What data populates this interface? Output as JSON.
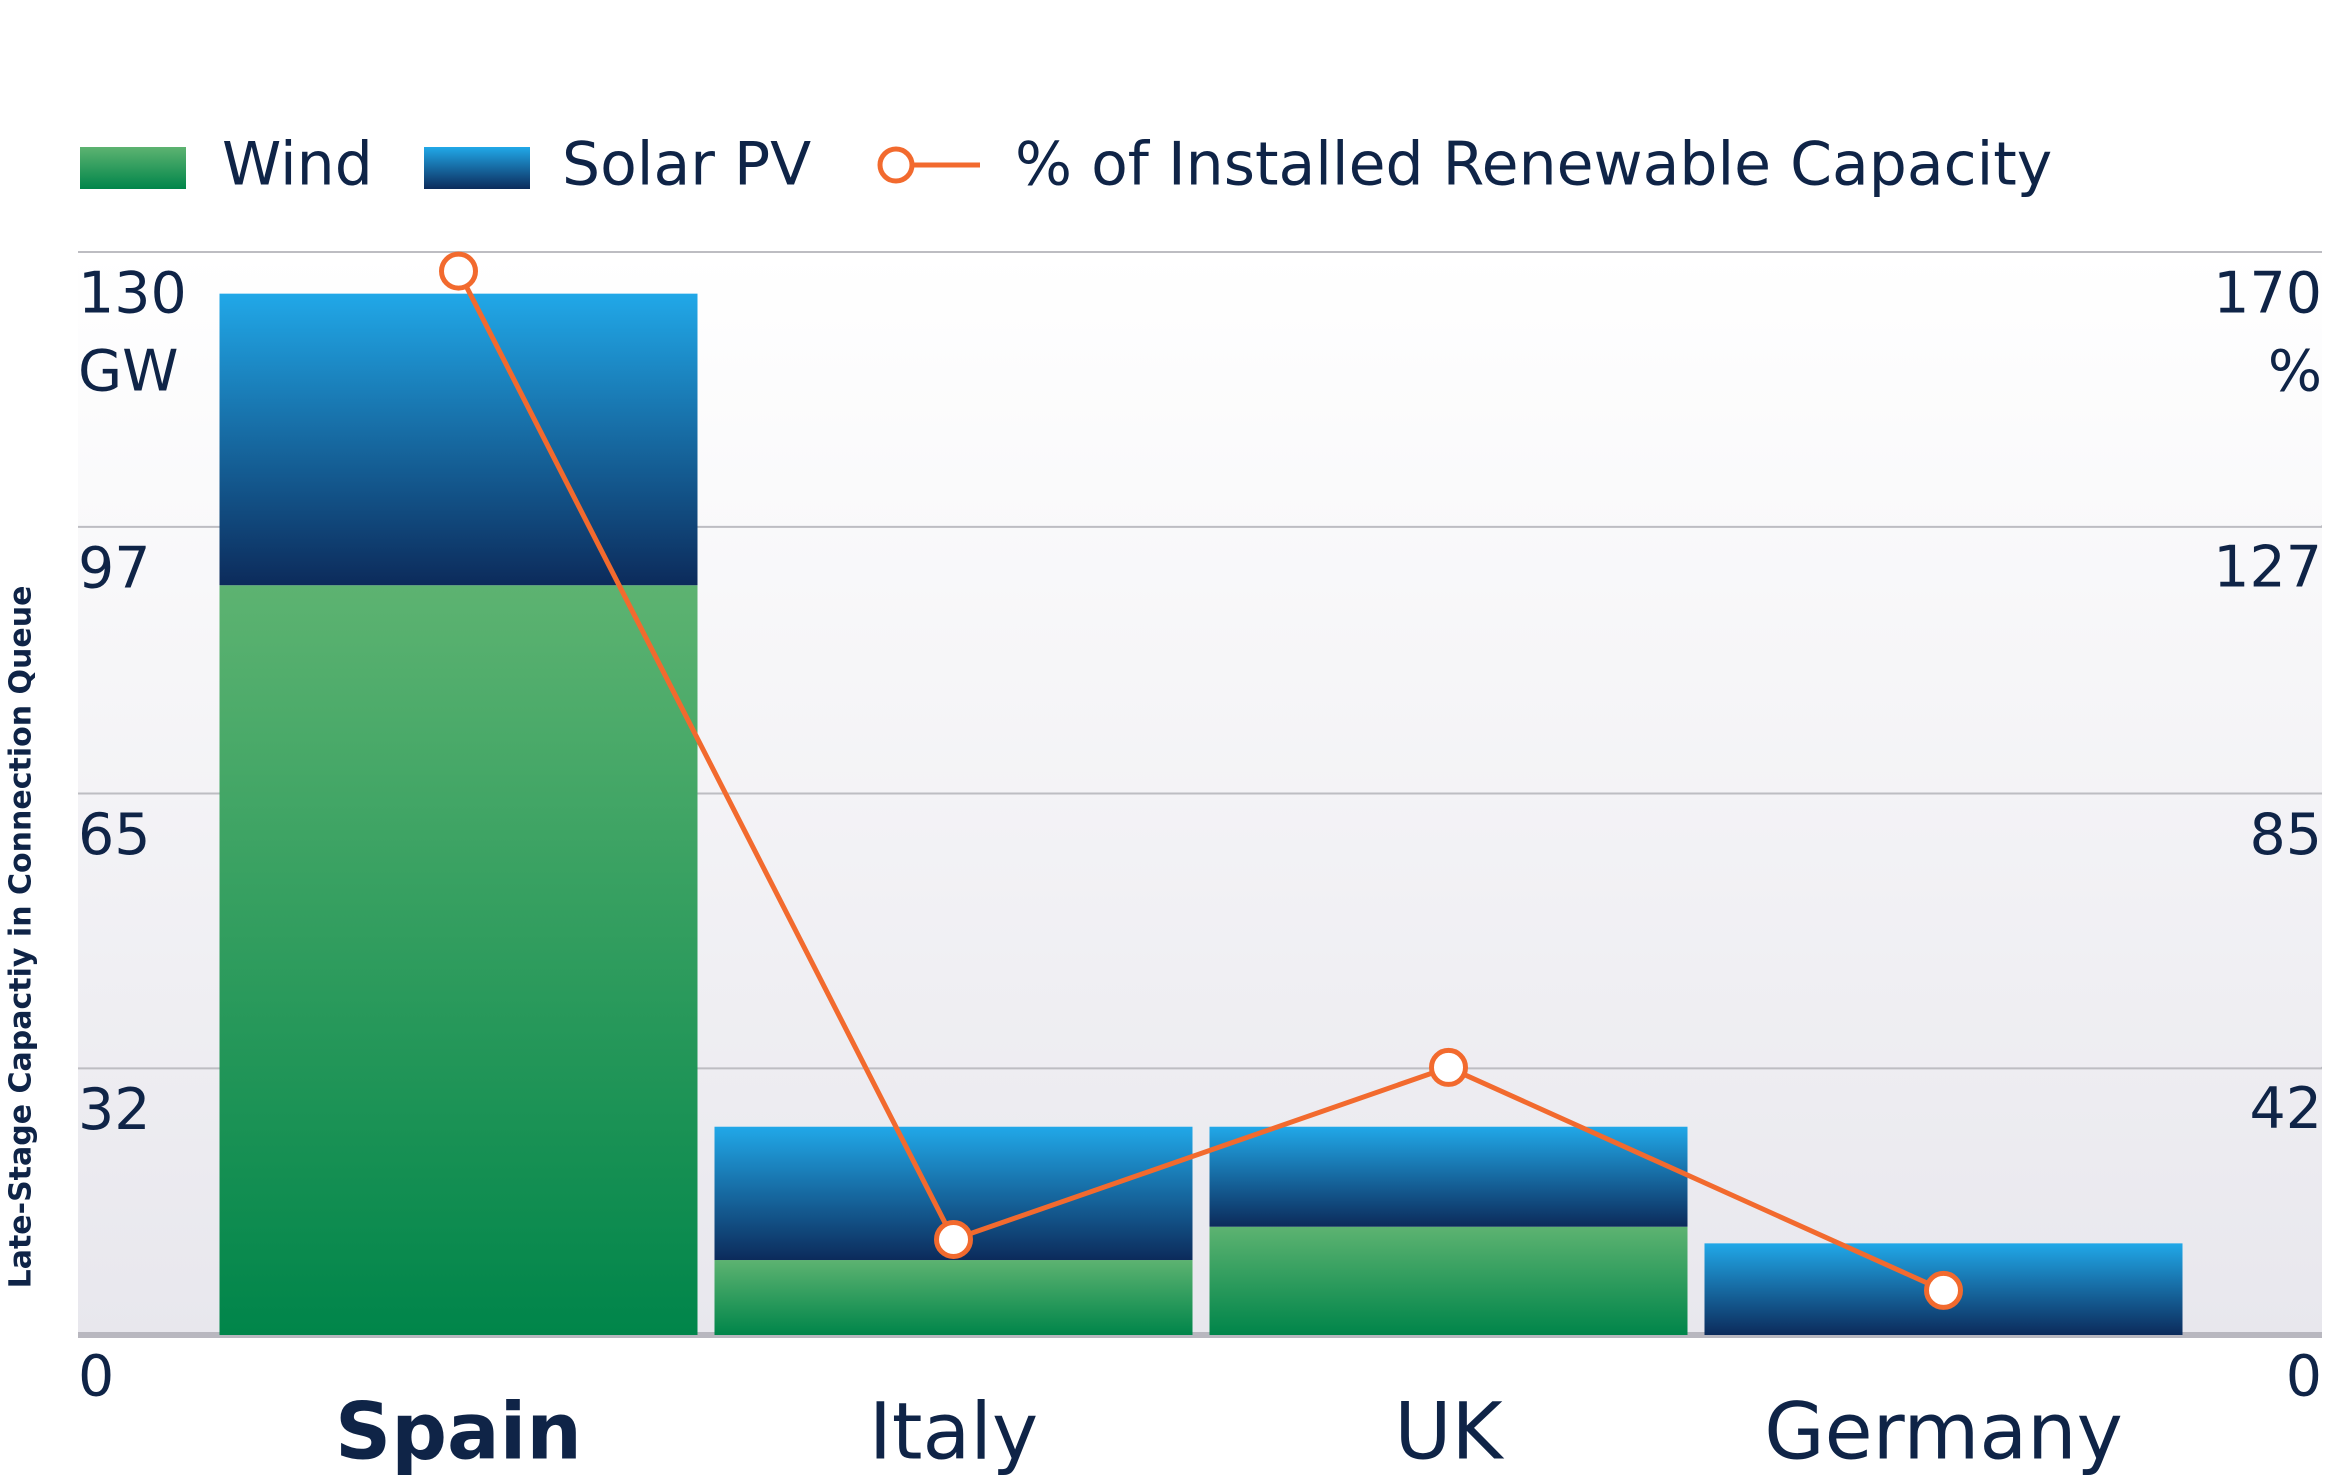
{
  "chart_data": {
    "type": "bar",
    "y_label": "Late-Stage Capactiy in Connection Queue",
    "y_unit": "GW",
    "y2_unit": "%",
    "categories": [
      "Spain",
      "Italy",
      "UK",
      "Germany"
    ],
    "series": [
      {
        "name": "Wind",
        "type": "bar",
        "color": [
          "#5db371",
          "#00854a"
        ],
        "values": [
          90,
          9,
          13,
          0
        ]
      },
      {
        "name": "Solar PV",
        "type": "bar",
        "color": [
          "#21a8e8",
          "#0c2b5b"
        ],
        "values": [
          35,
          16,
          12,
          11
        ]
      },
      {
        "name": "% of Installed Renewable Capacity",
        "type": "line",
        "axis": "y2",
        "color": "#f26a2e",
        "values": [
          167,
          15,
          42,
          7
        ]
      }
    ],
    "ylim": [
      0,
      130
    ],
    "yticks": [
      0,
      32,
      65,
      97,
      130
    ],
    "y2lim": [
      0,
      170
    ],
    "y2ticks": [
      0,
      42,
      85,
      127,
      170
    ],
    "grid": true,
    "legend": "top"
  }
}
